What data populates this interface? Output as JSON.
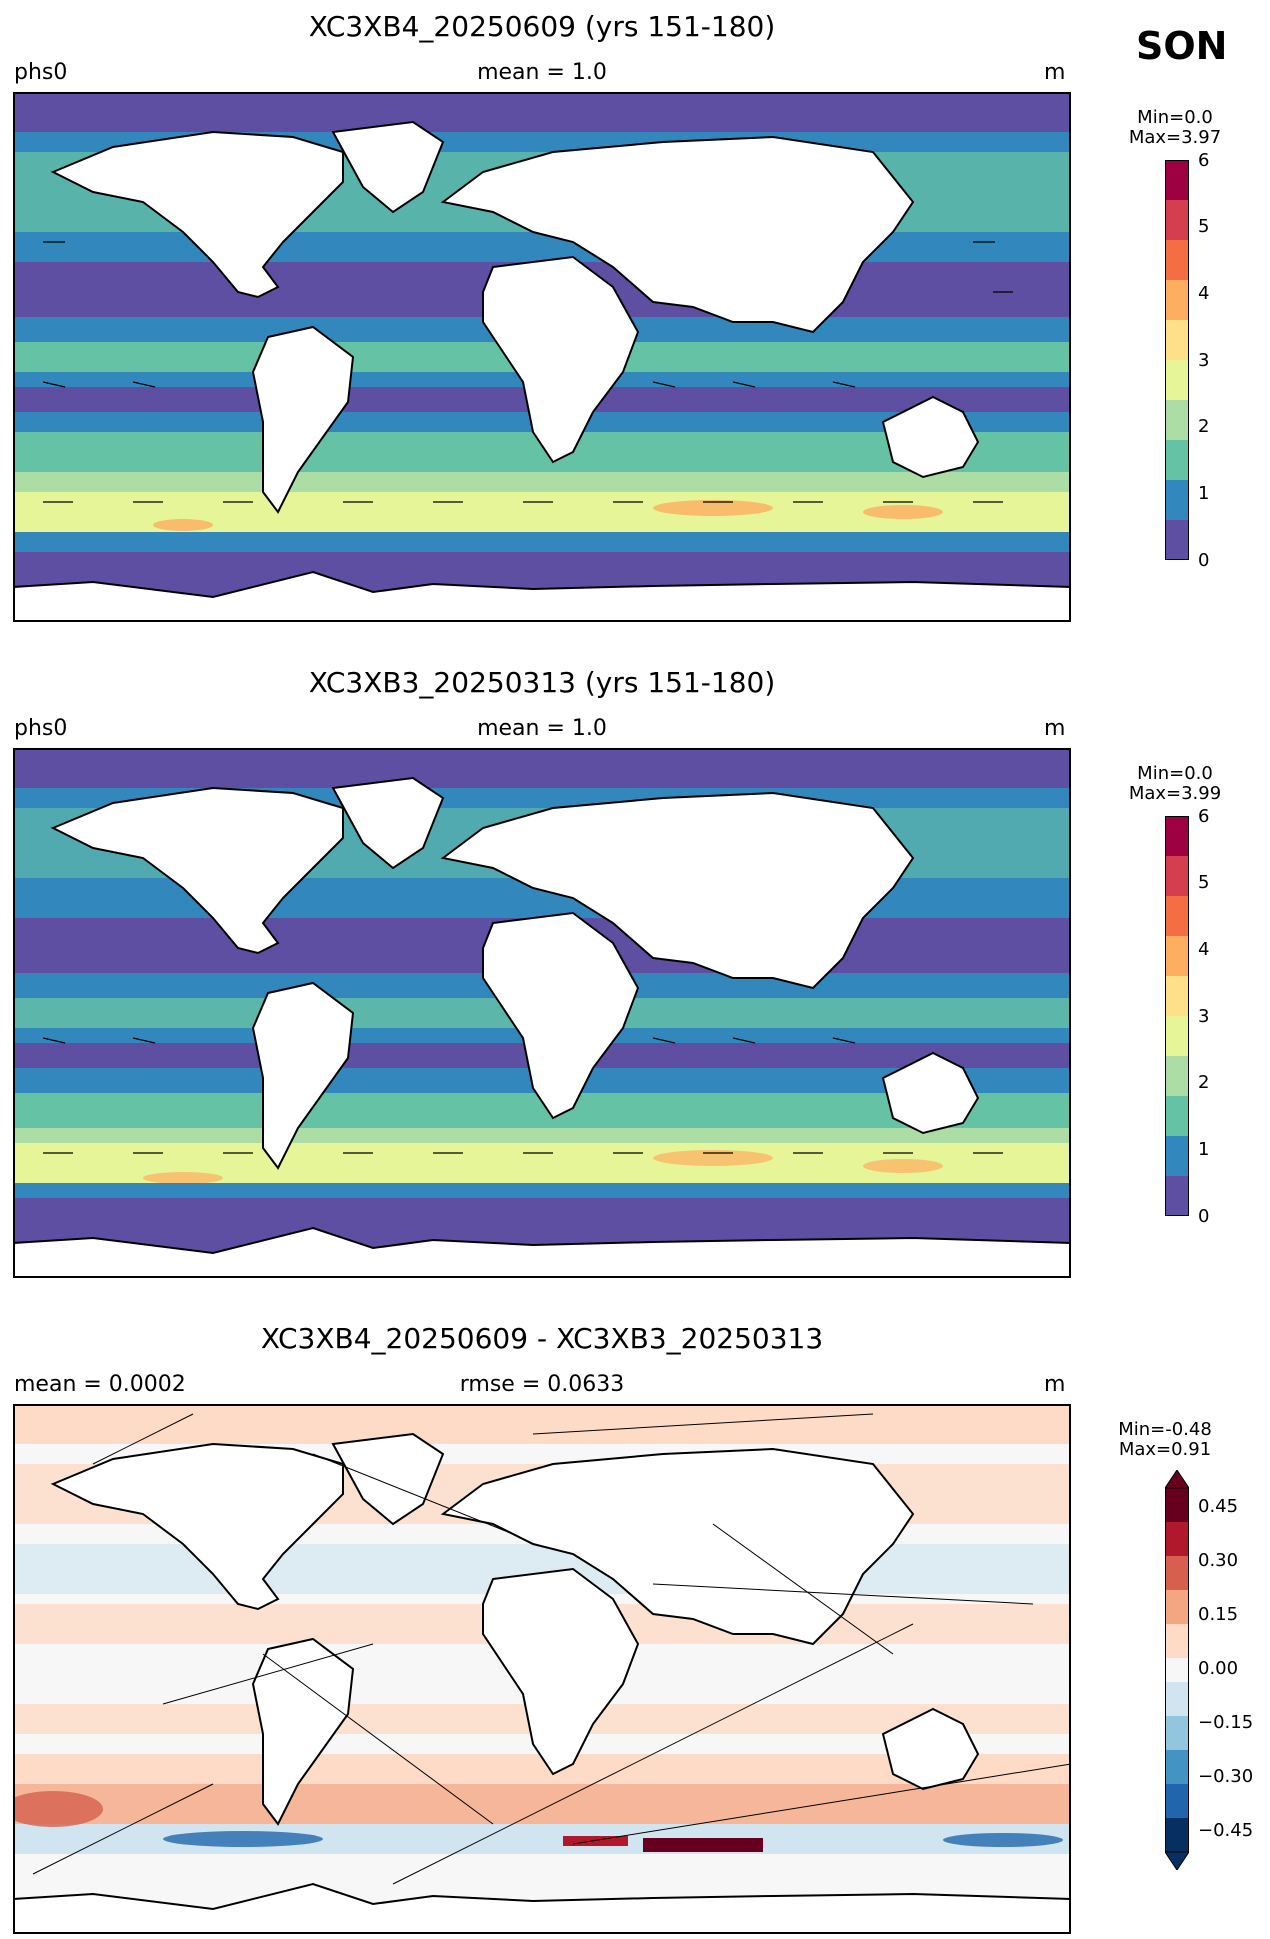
{
  "season": "SON",
  "units_label": "m",
  "panels": [
    {
      "title": "XC3XB4_20250609 (yrs 151-180)",
      "left_label": "phs0",
      "center_label": "mean = 1.0",
      "right_label": "m",
      "colorbar": {
        "min_text": "Min=0.0",
        "max_text": "Max=3.97",
        "ticks": [
          "0",
          "1",
          "2",
          "3",
          "4",
          "5",
          "6"
        ],
        "colors": [
          "#5e4fa2",
          "#3288bd",
          "#66c2a5",
          "#abdda4",
          "#e6f598",
          "#fee08b",
          "#fdae61",
          "#f46d43",
          "#d53e4f",
          "#9e0142"
        ]
      }
    },
    {
      "title": "XC3XB3_20250313 (yrs 151-180)",
      "left_label": "phs0",
      "center_label": "mean = 1.0",
      "right_label": "m",
      "colorbar": {
        "min_text": "Min=0.0",
        "max_text": "Max=3.99",
        "ticks": [
          "0",
          "1",
          "2",
          "3",
          "4",
          "5",
          "6"
        ],
        "colors": [
          "#5e4fa2",
          "#3288bd",
          "#66c2a5",
          "#abdda4",
          "#e6f598",
          "#fee08b",
          "#fdae61",
          "#f46d43",
          "#d53e4f",
          "#9e0142"
        ]
      }
    },
    {
      "title": "XC3XB4_20250609 - XC3XB3_20250313",
      "left_label": "mean = 0.0002",
      "center_label": "rmse = 0.0633",
      "right_label": "m",
      "colorbar": {
        "min_text": "Min=-0.48",
        "max_text": "Max=0.91",
        "ticks": [
          "0.45",
          "0.30",
          "0.15",
          "0.00",
          "−0.15",
          "−0.30",
          "−0.45"
        ],
        "colors": [
          "#67001f",
          "#b2182b",
          "#d6604d",
          "#f4a582",
          "#fddbc7",
          "#f7f7f7",
          "#d1e5f0",
          "#92c5de",
          "#4393c3",
          "#2166ac",
          "#053061"
        ]
      }
    }
  ],
  "map_colors": {
    "land": "#ffffff",
    "ocean_low": "#5e4fa2",
    "ocean_mid": "#3288bd",
    "ocean_green": "#66c2a5",
    "ocean_lightgreen": "#abdda4",
    "ocean_yellow": "#e6f598",
    "ocean_orange": "#fdae61",
    "diff_pos": "#fddbc7",
    "diff_neg": "#d1e5f0",
    "diff_strong_pos": "#b2182b",
    "diff_strong_neg": "#2166ac"
  }
}
